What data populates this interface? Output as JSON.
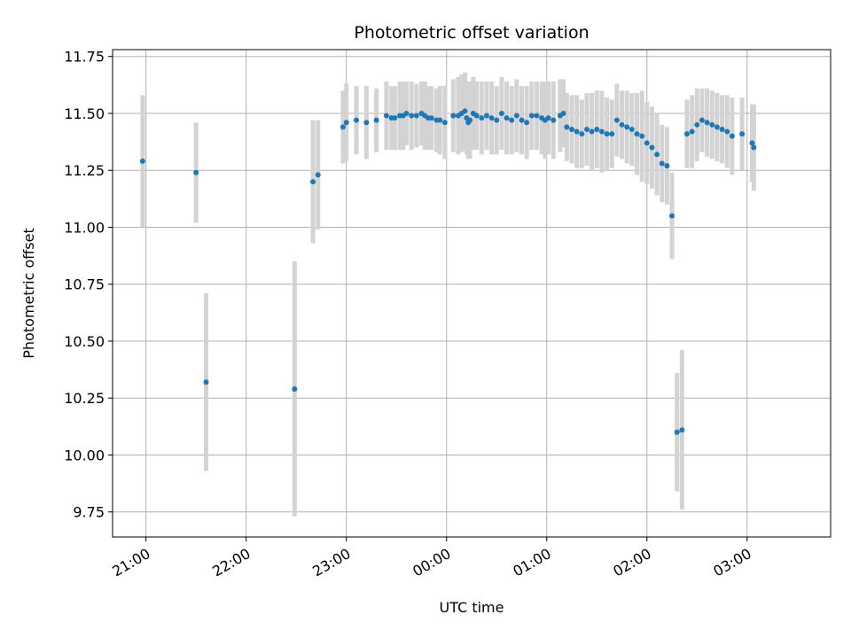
{
  "chart_data": {
    "type": "scatter",
    "title": "Photometric offset variation",
    "xlabel": "UTC time",
    "ylabel": "Photometric offset",
    "x_unit": "UTC time",
    "x_tick_labels": [
      "21:00",
      "22:00",
      "23:00",
      "00:00",
      "01:00",
      "02:00",
      "03:00"
    ],
    "x_tick_times": [
      "20:55",
      "21:25",
      "21:31",
      "22:27",
      "22:36",
      "22:43",
      "22:50",
      "22:55",
      "23:00",
      "23:06",
      "23:12",
      "23:21",
      "23:24",
      "23:27",
      "23:30",
      "23:33",
      "23:36",
      "23:38",
      "23:42",
      "23:45",
      "23:48",
      "23:51",
      "23:54",
      "23:57",
      "00:03",
      "00:06",
      "00:09",
      "00:12",
      "00:15",
      "00:18",
      "00:21",
      "00:24",
      "00:27",
      "00:30",
      "00:33",
      "00:36",
      "00:39",
      "00:42",
      "00:45",
      "00:48",
      "00:51",
      "00:54",
      "00:57",
      "01:00",
      "01:03",
      "01:06",
      "01:09",
      "01:12",
      "01:18",
      "01:24",
      "01:27",
      "01:30",
      "01:33",
      "01:36",
      "01:39",
      "01:42",
      "01:45",
      "01:48",
      "01:51",
      "01:54",
      "01:57",
      "02:00",
      "02:06",
      "02:09",
      "02:12",
      "02:15",
      "02:18",
      "02:21",
      "02:24",
      "02:27",
      "02:33",
      "02:36",
      "02:39",
      "02:42",
      "02:45",
      "02:48",
      "02:51",
      "02:55",
      "03:03",
      "03:04"
    ],
    "x": [
      "20:58",
      "21:30",
      "21:36",
      "22:29",
      "22:40",
      "22:43",
      "22:58",
      "23:00",
      "23:06",
      "23:12",
      "23:18",
      "23:24",
      "23:27",
      "23:29",
      "23:32",
      "23:34",
      "23:36",
      "23:39",
      "23:42",
      "23:45",
      "23:47",
      "23:49",
      "23:51",
      "23:54",
      "23:56",
      "23:59",
      "00:04",
      "00:07",
      "00:09",
      "00:11",
      "00:12",
      "00:13",
      "00:14",
      "00:16",
      "00:18",
      "00:21",
      "00:24",
      "00:27",
      "00:30",
      "00:33",
      "00:36",
      "00:39",
      "00:42",
      "00:45",
      "00:48",
      "00:51",
      "00:54",
      "00:57",
      "00:59",
      "01:01",
      "01:04",
      "01:08",
      "01:10",
      "01:12",
      "01:15",
      "01:18",
      "01:21",
      "01:24",
      "01:27",
      "01:30",
      "01:33",
      "01:36",
      "01:39",
      "01:42",
      "01:45",
      "01:48",
      "01:51",
      "01:54",
      "01:57",
      "02:00",
      "02:03",
      "02:06",
      "02:09",
      "02:12",
      "02:15",
      "02:18",
      "02:21",
      "02:24",
      "02:27",
      "02:30",
      "02:33",
      "02:36",
      "02:39",
      "02:42",
      "02:45",
      "02:48",
      "02:51",
      "02:57",
      "03:03",
      "03:04"
    ],
    "series": [
      {
        "name": "",
        "y": [
          11.29,
          11.24,
          10.32,
          10.29,
          11.2,
          11.23,
          11.44,
          11.46,
          11.47,
          11.46,
          11.47,
          11.49,
          11.48,
          11.48,
          11.49,
          11.49,
          11.5,
          11.49,
          11.49,
          11.5,
          11.49,
          11.48,
          11.48,
          11.47,
          11.47,
          11.46,
          11.49,
          11.49,
          11.5,
          11.51,
          11.48,
          11.46,
          11.47,
          11.5,
          11.49,
          11.48,
          11.49,
          11.48,
          11.47,
          11.5,
          11.48,
          11.47,
          11.49,
          11.47,
          11.46,
          11.49,
          11.49,
          11.48,
          11.47,
          11.48,
          11.47,
          11.49,
          11.5,
          11.44,
          11.43,
          11.42,
          11.41,
          11.43,
          11.42,
          11.43,
          11.42,
          11.41,
          11.41,
          11.47,
          11.45,
          11.44,
          11.43,
          11.41,
          11.4,
          11.37,
          11.35,
          11.32,
          11.28,
          11.27,
          11.05,
          10.1,
          10.11,
          11.41,
          11.42,
          11.45,
          11.47,
          11.46,
          11.45,
          11.44,
          11.43,
          11.42,
          11.4,
          11.41,
          11.37,
          11.35
        ],
        "error": [
          0.29,
          0.22,
          0.39,
          0.56,
          0.27,
          0.24,
          0.16,
          0.17,
          0.15,
          0.16,
          0.14,
          0.15,
          0.14,
          0.14,
          0.15,
          0.15,
          0.14,
          0.15,
          0.14,
          0.14,
          0.15,
          0.14,
          0.14,
          0.14,
          0.15,
          0.16,
          0.16,
          0.17,
          0.17,
          0.17,
          0.16,
          0.16,
          0.17,
          0.16,
          0.15,
          0.16,
          0.15,
          0.16,
          0.15,
          0.16,
          0.16,
          0.15,
          0.16,
          0.15,
          0.16,
          0.15,
          0.15,
          0.16,
          0.17,
          0.16,
          0.17,
          0.16,
          0.15,
          0.15,
          0.15,
          0.16,
          0.15,
          0.16,
          0.17,
          0.17,
          0.18,
          0.16,
          0.15,
          0.16,
          0.15,
          0.16,
          0.16,
          0.18,
          0.2,
          0.18,
          0.18,
          0.18,
          0.17,
          0.17,
          0.19,
          0.26,
          0.35,
          0.15,
          0.16,
          0.16,
          0.14,
          0.15,
          0.15,
          0.15,
          0.15,
          0.16,
          0.17,
          0.16,
          0.17,
          0.19
        ]
      }
    ],
    "xlim": [
      "20:40",
      "03:50"
    ],
    "ylim": [
      9.64,
      11.78
    ],
    "y_ticks": [
      9.75,
      10.0,
      10.25,
      10.5,
      10.75,
      11.0,
      11.25,
      11.5,
      11.75
    ],
    "y_tick_labels": [
      "9.75",
      "10.00",
      "10.25",
      "10.50",
      "10.75",
      "11.00",
      "11.25",
      "11.50",
      "11.75"
    ],
    "grid": true,
    "colors": {
      "marker": "#1f77b4",
      "errorbar": "#d3d3d3",
      "grid": "#b0b0b0"
    }
  }
}
